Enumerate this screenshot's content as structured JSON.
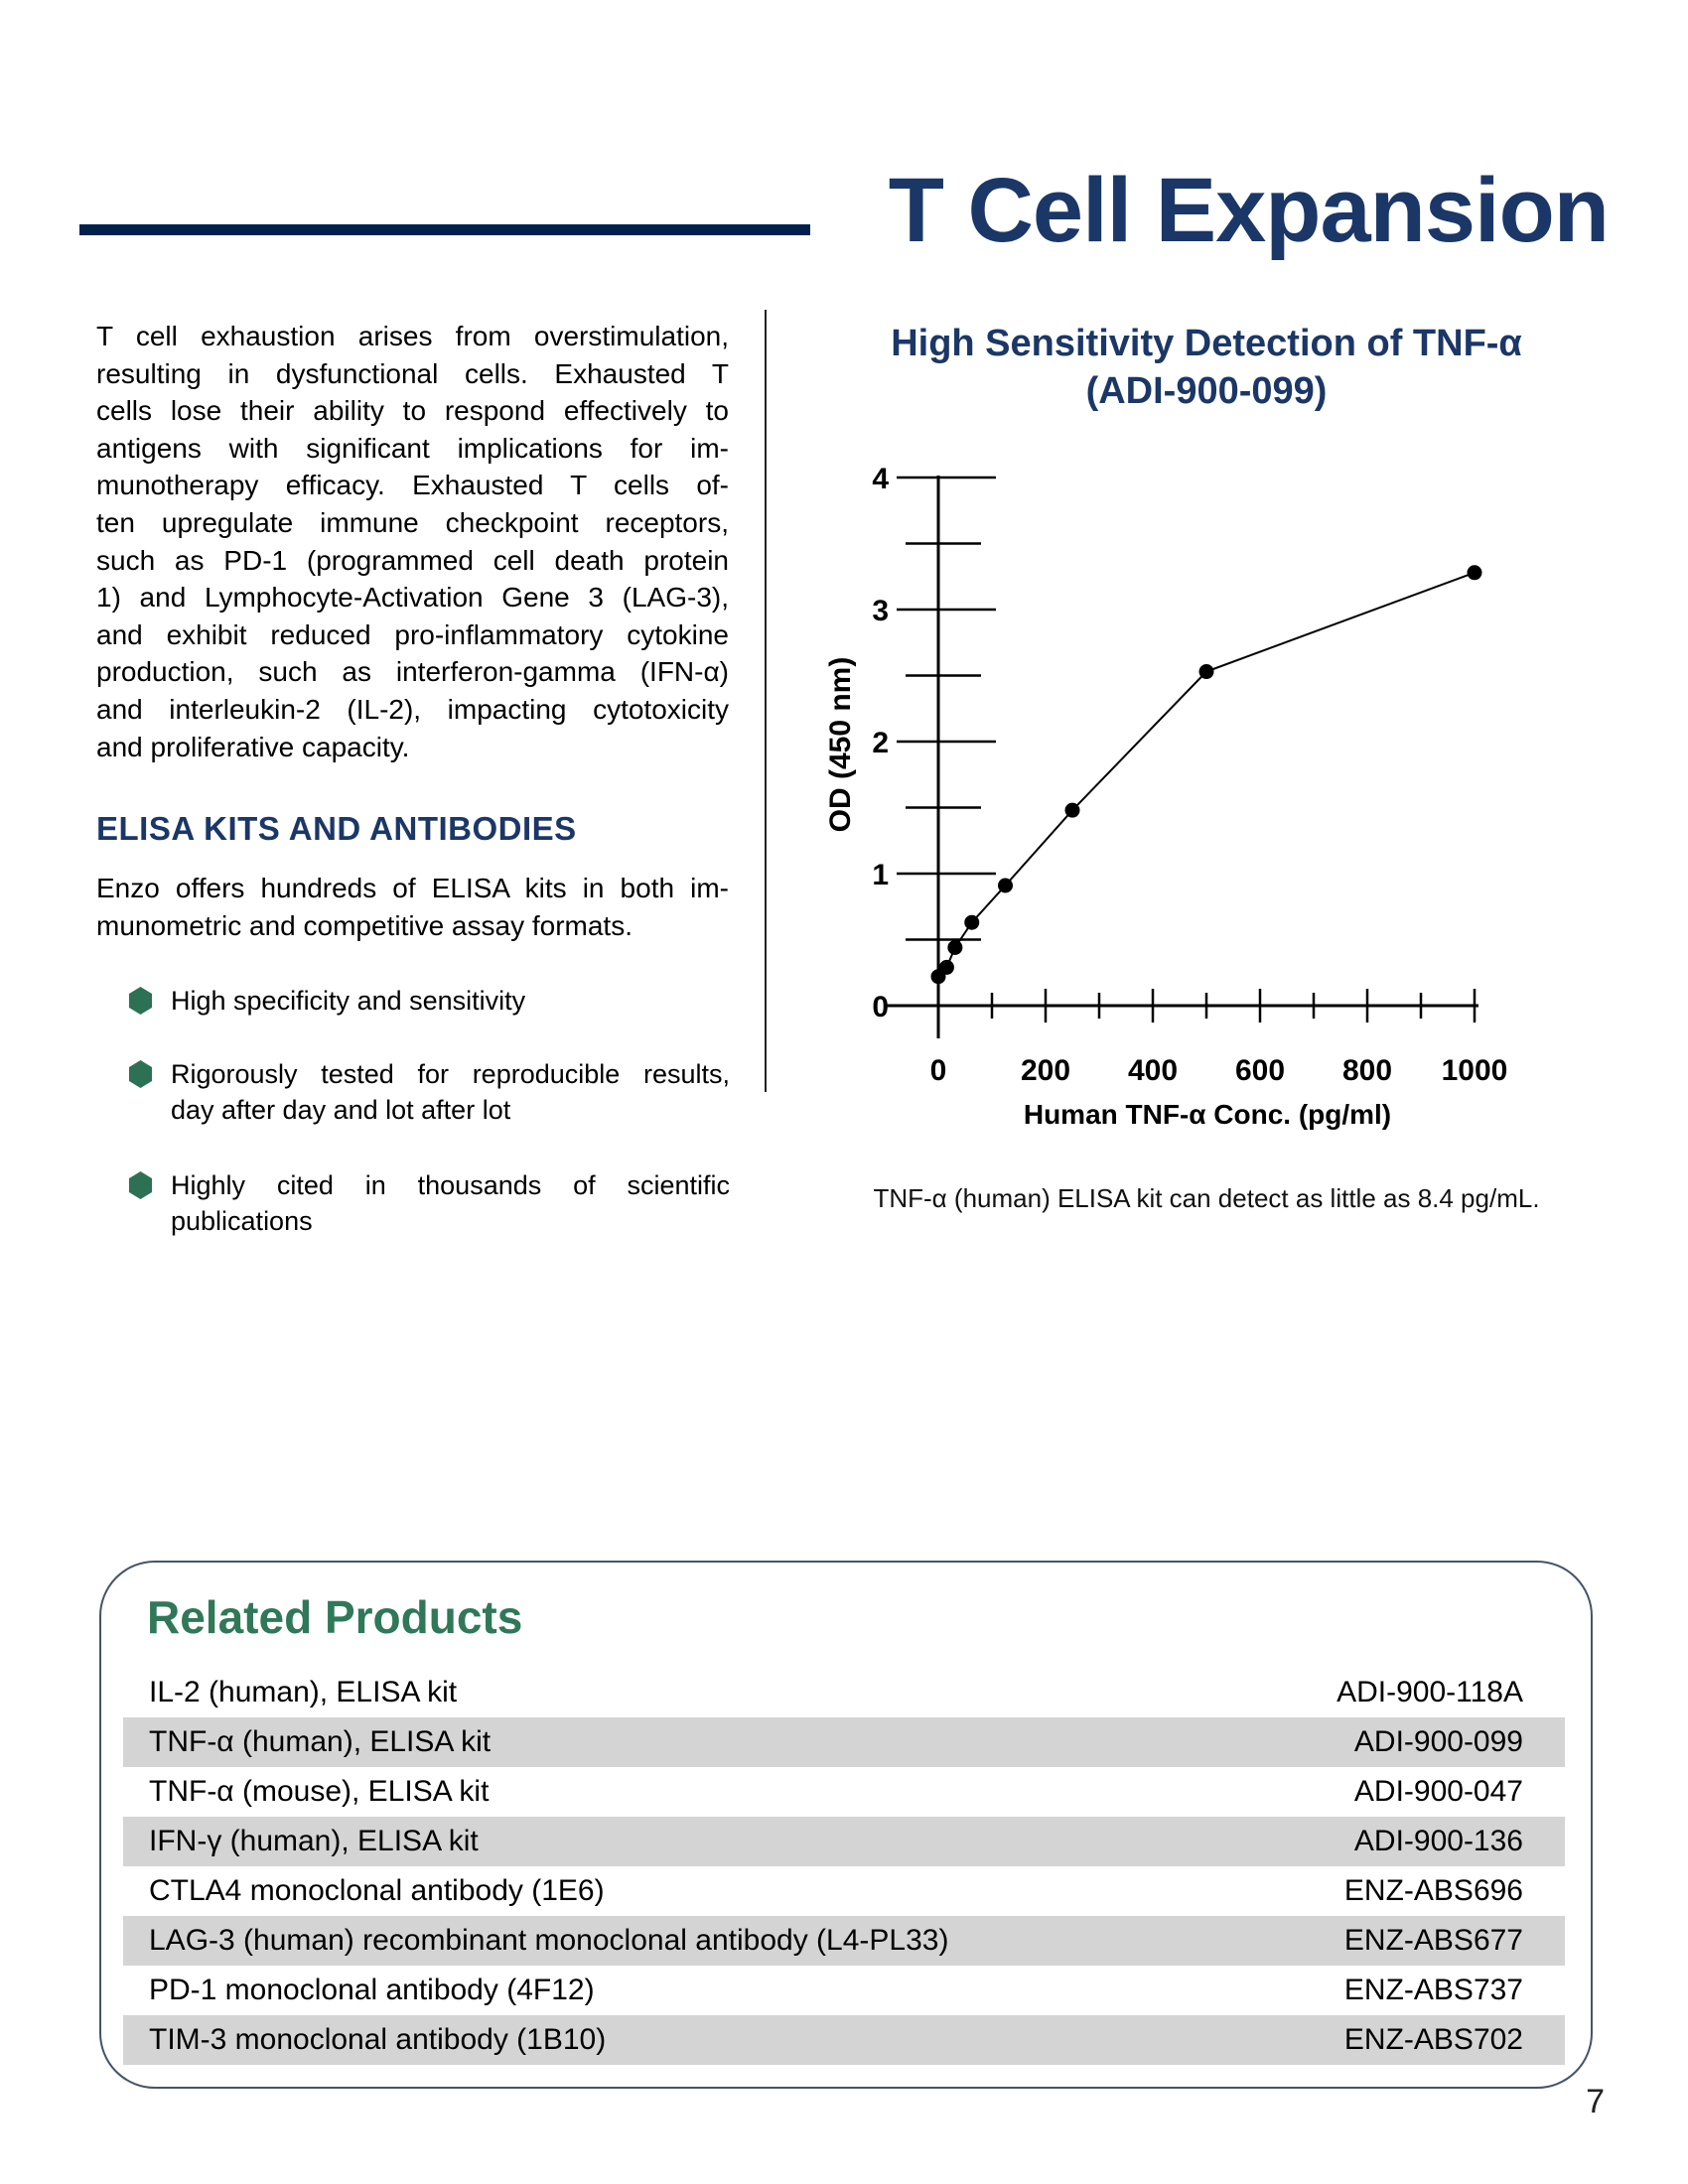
{
  "page": {
    "number": "7"
  },
  "header": {
    "title": "T Cell Expansion"
  },
  "intro_paragraph_lines": [
    "T cell exhaustion arises from overstimulation,",
    "resulting in dysfunctional cells.  Exhausted T",
    "cells lose their ability to respond effectively to",
    "antigens with significant implications for im-",
    "munotherapy efficacy. Exhausted T cells of-",
    "ten upregulate immune checkpoint receptors,",
    "such as PD-1 (programmed cell death protein",
    "1) and Lymphocyte-Activation Gene 3 (LAG-3),",
    "and exhibit reduced pro-inflammatory cytokine",
    "production, such as interferon-gamma (IFN-α)",
    "and interleukin-2 (IL-2), impacting cytotoxicity",
    "and proliferative capacity."
  ],
  "section": {
    "heading": "ELISA KITS AND ANTIBODIES",
    "intro_lines": [
      "Enzo offers hundreds of ELISA kits in both im-",
      "munometric and competitive assay formats."
    ],
    "bullets": [
      {
        "lines": [
          "High specificity and sensitivity",
          ""
        ]
      },
      {
        "lines": [
          "Rigorously tested for reproducible results,",
          "day after day and lot after lot"
        ]
      },
      {
        "lines": [
          "Highly cited in thousands of scientific",
          "publications"
        ]
      }
    ]
  },
  "chart": {
    "title_line1": "High Sensitivity Detection of TNF-α",
    "title_line2": "(ADI-900-099)",
    "caption": "TNF-α (human) ELISA kit can detect as little as 8.4 pg/mL."
  },
  "chart_data": {
    "type": "line",
    "x": [
      0,
      15.6,
      31.25,
      62.5,
      125,
      250,
      500,
      1000
    ],
    "y": [
      0.22,
      0.29,
      0.44,
      0.63,
      0.91,
      1.48,
      2.53,
      3.28
    ],
    "title": "High Sensitivity Detection of TNF-α (ADI-900-099)",
    "xlabel": "Human TNF-α Conc. (pg/ml)",
    "ylabel": "OD (450 nm)",
    "xlim": [
      0,
      1000
    ],
    "ylim": [
      0,
      4
    ],
    "x_major_ticks": [
      0,
      200,
      400,
      600,
      800,
      1000
    ],
    "x_minor_ticks": [
      100,
      300,
      500,
      700,
      900
    ],
    "y_major_ticks": [
      0,
      1,
      2,
      3,
      4
    ],
    "y_minor_ticks": [
      0.5,
      1.5,
      2.5,
      3.5
    ],
    "grid": false,
    "legend": false,
    "marker": "circle",
    "line_color": "#000000"
  },
  "related_products": {
    "heading": "Related Products",
    "rows": [
      {
        "name": "IL-2 (human), ELISA kit",
        "code": "ADI-900-118A",
        "shaded": false
      },
      {
        "name": "TNF-α (human), ELISA kit",
        "code": "ADI-900-099",
        "shaded": true
      },
      {
        "name": "TNF-α (mouse), ELISA kit",
        "code": "ADI-900-047",
        "shaded": false
      },
      {
        "name": "IFN-γ (human), ELISA kit",
        "code": "ADI-900-136",
        "shaded": true
      },
      {
        "name": "CTLA4 monoclonal antibody (1E6)",
        "code": "ENZ-ABS696",
        "shaded": false
      },
      {
        "name": "LAG-3 (human) recombinant monoclonal antibody (L4-PL33)",
        "code": "ENZ-ABS677",
        "shaded": true
      },
      {
        "name": "PD-1 monoclonal antibody (4F12)",
        "code": "ENZ-ABS737",
        "shaded": false
      },
      {
        "name": "TIM-3 monoclonal antibody (1B10)",
        "code": "ENZ-ABS702",
        "shaded": true
      }
    ]
  },
  "colors": {
    "navy": "#1b3767",
    "rule_navy": "#02204e",
    "green": "#2f7858",
    "row_gray": "#d4d4d4",
    "black": "#000000"
  }
}
